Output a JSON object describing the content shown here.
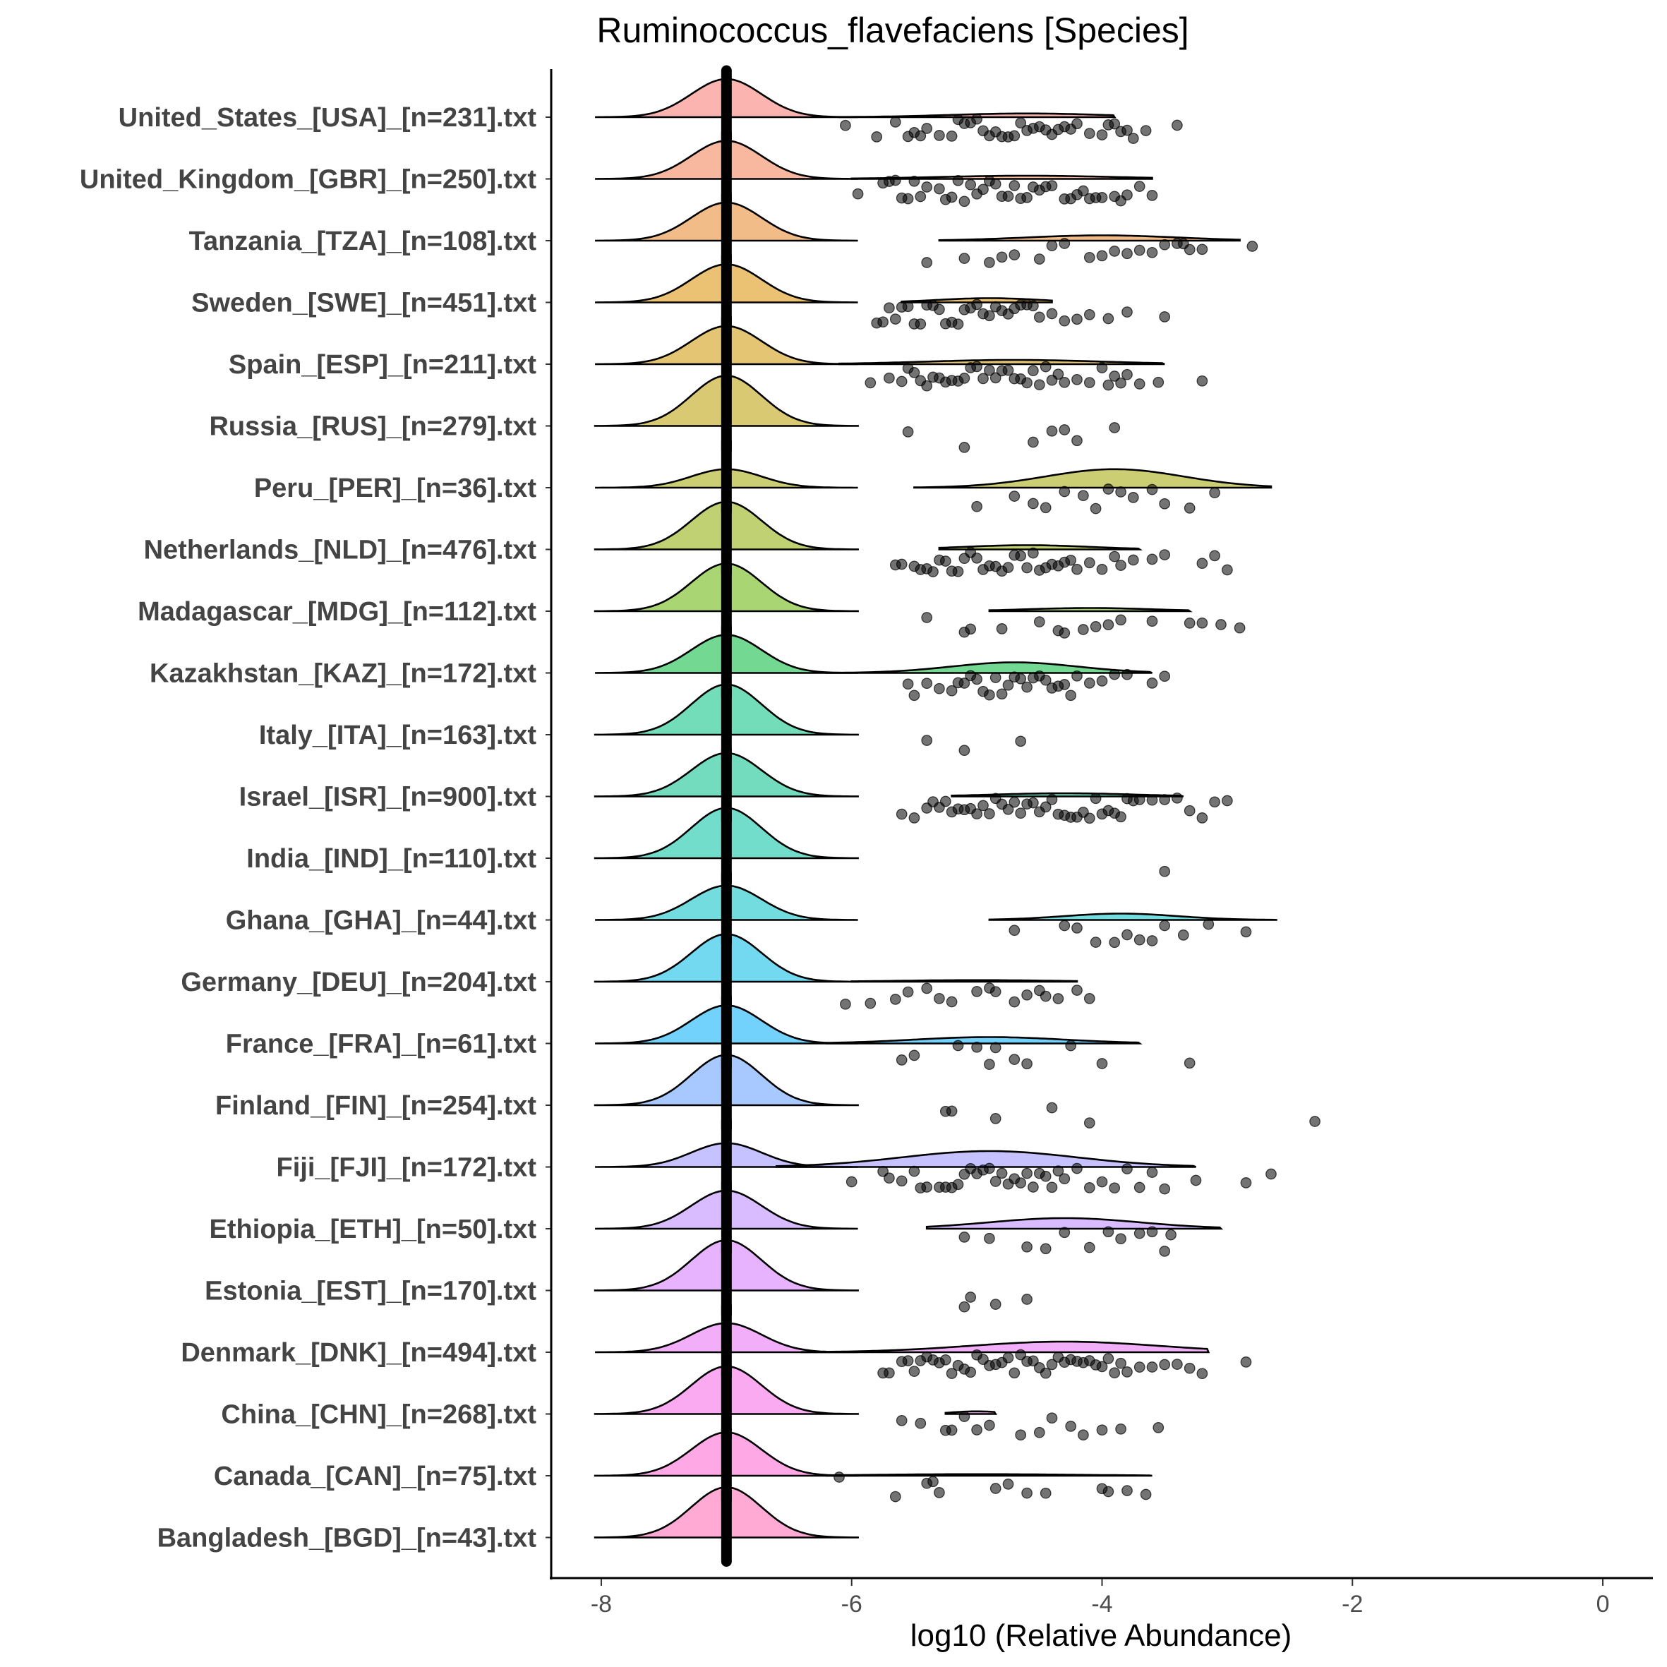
{
  "chart_data": {
    "type": "ridgeline",
    "title": "Ruminococcus_flavefaciens [Species]",
    "xlabel": "log10 (Relative Abundance)",
    "ylabel": "",
    "xlim": [
      -8.4,
      0.4
    ],
    "xticks": [
      -8,
      -6,
      -4,
      -2,
      0
    ],
    "xtick_labels": [
      "-8",
      "-6",
      "-4",
      "-2",
      "0"
    ],
    "zero_value": -7,
    "categories": [
      {
        "name": "United_States_[USA]_[n=231].txt",
        "color": "#F8766D",
        "zero_peak": 0.72,
        "second": {
          "mean": -4.6,
          "sd": 0.6,
          "peak": 0.07,
          "from": -6.1,
          "to": -3.9
        },
        "points": [
          -6.05,
          -5.8,
          -5.65,
          -5.55,
          -5.5,
          -5.45,
          -5.4,
          -5.3,
          -5.2,
          -5.15,
          -5.1,
          -5.05,
          -5.0,
          -4.95,
          -4.9,
          -4.85,
          -4.8,
          -4.75,
          -4.7,
          -4.65,
          -4.6,
          -4.55,
          -4.5,
          -4.45,
          -4.4,
          -4.35,
          -4.3,
          -4.25,
          -4.2,
          -4.1,
          -4.0,
          -3.95,
          -3.9,
          -3.85,
          -3.8,
          -3.75,
          -3.65,
          -3.4
        ]
      },
      {
        "name": "United_Kingdom_[GBR]_[n=250].txt",
        "color": "#F27D52",
        "zero_peak": 0.72,
        "second": {
          "mean": -4.6,
          "sd": 0.7,
          "peak": 0.06,
          "from": -6.0,
          "to": -3.6
        },
        "points": [
          -5.95,
          -5.75,
          -5.7,
          -5.65,
          -5.6,
          -5.55,
          -5.5,
          -5.45,
          -5.4,
          -5.3,
          -5.25,
          -5.2,
          -5.15,
          -5.1,
          -5.05,
          -5.0,
          -4.95,
          -4.9,
          -4.85,
          -4.8,
          -4.75,
          -4.7,
          -4.65,
          -4.6,
          -4.55,
          -4.5,
          -4.45,
          -4.4,
          -4.3,
          -4.25,
          -4.2,
          -4.15,
          -4.1,
          -4.05,
          -4.0,
          -3.9,
          -3.85,
          -3.8,
          -3.7,
          -3.6
        ]
      },
      {
        "name": "Tanzania_[TZA]_[n=108].txt",
        "color": "#E88526",
        "zero_peak": 0.72,
        "second": {
          "mean": -4.0,
          "sd": 0.6,
          "peak": 0.1,
          "from": -5.3,
          "to": -2.9
        },
        "points": [
          -5.4,
          -5.1,
          -4.9,
          -4.8,
          -4.7,
          -4.5,
          -4.4,
          -4.3,
          -4.1,
          -4.0,
          -3.9,
          -3.8,
          -3.7,
          -3.6,
          -3.5,
          -3.4,
          -3.35,
          -3.3,
          -3.2,
          -2.8
        ]
      },
      {
        "name": "Sweden_[SWE]_[n=451].txt",
        "color": "#DB8E00",
        "zero_peak": 0.72,
        "second": {
          "mean": -4.9,
          "sd": 0.4,
          "peak": 0.08,
          "from": -5.6,
          "to": -4.4
        },
        "points": [
          -5.8,
          -5.75,
          -5.7,
          -5.65,
          -5.6,
          -5.55,
          -5.5,
          -5.45,
          -5.4,
          -5.35,
          -5.3,
          -5.25,
          -5.2,
          -5.15,
          -5.1,
          -5.05,
          -5.0,
          -4.95,
          -4.9,
          -4.85,
          -4.8,
          -4.75,
          -4.7,
          -4.65,
          -4.6,
          -4.55,
          -4.5,
          -4.4,
          -4.3,
          -4.2,
          -4.1,
          -3.95,
          -3.8,
          -3.5
        ]
      },
      {
        "name": "Spain_[ESP]_[n=211].txt",
        "color": "#CD9600",
        "zero_peak": 0.72,
        "second": {
          "mean": -4.7,
          "sd": 0.7,
          "peak": 0.08,
          "from": -6.1,
          "to": -3.5
        },
        "points": [
          -5.85,
          -5.7,
          -5.6,
          -5.55,
          -5.5,
          -5.45,
          -5.4,
          -5.35,
          -5.3,
          -5.25,
          -5.2,
          -5.15,
          -5.1,
          -5.05,
          -5.0,
          -4.95,
          -4.9,
          -4.85,
          -4.8,
          -4.75,
          -4.7,
          -4.65,
          -4.6,
          -4.55,
          -4.5,
          -4.45,
          -4.4,
          -4.35,
          -4.3,
          -4.2,
          -4.1,
          -4.0,
          -3.95,
          -3.9,
          -3.85,
          -3.8,
          -3.7,
          -3.55,
          -3.2
        ]
      },
      {
        "name": "Russia_[RUS]_[n=279].txt",
        "color": "#BB9D00",
        "zero_peak": 0.95,
        "second": null,
        "points": [
          -5.55,
          -5.1,
          -4.55,
          -4.4,
          -4.3,
          -4.2,
          -3.9
        ]
      },
      {
        "name": "Peru_[PER]_[n=36].txt",
        "color": "#A3A500",
        "zero_peak": 0.35,
        "second": {
          "mean": -3.9,
          "sd": 0.55,
          "peak": 0.35,
          "from": -5.5,
          "to": -2.65
        },
        "points": [
          -5.0,
          -4.7,
          -4.55,
          -4.45,
          -4.3,
          -4.15,
          -4.05,
          -3.95,
          -3.85,
          -3.75,
          -3.6,
          -3.5,
          -3.3,
          -3.1
        ]
      },
      {
        "name": "Netherlands_[NLD]_[n=476].txt",
        "color": "#8AAB00",
        "zero_peak": 0.9,
        "second": {
          "mean": -4.6,
          "sd": 0.5,
          "peak": 0.08,
          "from": -5.3,
          "to": -3.7
        },
        "points": [
          -5.65,
          -5.6,
          -5.5,
          -5.45,
          -5.4,
          -5.35,
          -5.3,
          -5.25,
          -5.2,
          -5.15,
          -5.1,
          -5.05,
          -5.0,
          -4.95,
          -4.9,
          -4.85,
          -4.8,
          -4.75,
          -4.7,
          -4.65,
          -4.6,
          -4.55,
          -4.5,
          -4.45,
          -4.4,
          -4.35,
          -4.3,
          -4.25,
          -4.2,
          -4.1,
          -4.0,
          -3.9,
          -3.85,
          -3.75,
          -3.6,
          -3.5,
          -3.2,
          -3.1,
          -3.0
        ]
      },
      {
        "name": "Madagascar_[MDG]_[n=112].txt",
        "color": "#64B200",
        "zero_peak": 0.9,
        "second": {
          "mean": -4.1,
          "sd": 0.5,
          "peak": 0.06,
          "from": -4.9,
          "to": -3.3
        },
        "points": [
          -5.4,
          -5.1,
          -5.05,
          -4.8,
          -4.5,
          -4.35,
          -4.3,
          -4.15,
          -4.05,
          -3.95,
          -3.85,
          -3.6,
          -3.3,
          -3.2,
          -3.05,
          -2.9
        ]
      },
      {
        "name": "Kazakhstan_[KAZ]_[n=172].txt",
        "color": "#00BA38",
        "zero_peak": 0.72,
        "second": {
          "mean": -4.7,
          "sd": 0.5,
          "peak": 0.2,
          "from": -6.2,
          "to": -3.6
        },
        "points": [
          -5.55,
          -5.5,
          -5.4,
          -5.3,
          -5.2,
          -5.15,
          -5.1,
          -5.05,
          -5.0,
          -4.95,
          -4.9,
          -4.85,
          -4.8,
          -4.75,
          -4.7,
          -4.65,
          -4.6,
          -4.55,
          -4.5,
          -4.45,
          -4.4,
          -4.35,
          -4.3,
          -4.25,
          -4.2,
          -4.1,
          -4.0,
          -3.9,
          -3.8,
          -3.6,
          -3.5
        ]
      },
      {
        "name": "Italy_[ITA]_[n=163].txt",
        "color": "#00BF7D",
        "zero_peak": 0.95,
        "second": null,
        "points": [
          -5.4,
          -5.1,
          -4.65
        ]
      },
      {
        "name": "Israel_[ISR]_[n=900].txt",
        "color": "#00C08B",
        "zero_peak": 0.82,
        "second": {
          "mean": -4.3,
          "sd": 0.55,
          "peak": 0.06,
          "from": -5.2,
          "to": -3.35
        },
        "points": [
          -5.6,
          -5.5,
          -5.4,
          -5.35,
          -5.3,
          -5.25,
          -5.2,
          -5.15,
          -5.1,
          -5.05,
          -5.0,
          -4.95,
          -4.9,
          -4.85,
          -4.8,
          -4.75,
          -4.7,
          -4.65,
          -4.6,
          -4.55,
          -4.5,
          -4.45,
          -4.4,
          -4.35,
          -4.3,
          -4.25,
          -4.2,
          -4.15,
          -4.1,
          -4.05,
          -4.0,
          -3.95,
          -3.9,
          -3.85,
          -3.8,
          -3.75,
          -3.7,
          -3.6,
          -3.5,
          -3.4,
          -3.3,
          -3.2,
          -3.1,
          -3.0
        ]
      },
      {
        "name": "India_[IND]_[n=110].txt",
        "color": "#00C1A3",
        "zero_peak": 0.95,
        "second": null,
        "points": [
          -3.5
        ]
      },
      {
        "name": "Ghana_[GHA]_[n=44].txt",
        "color": "#00BFC4",
        "zero_peak": 0.65,
        "second": {
          "mean": -3.85,
          "sd": 0.45,
          "peak": 0.12,
          "from": -4.9,
          "to": -2.6
        },
        "points": [
          -4.7,
          -4.3,
          -4.2,
          -4.05,
          -3.9,
          -3.8,
          -3.7,
          -3.6,
          -3.5,
          -3.35,
          -3.15,
          -2.85
        ]
      },
      {
        "name": "Germany_[DEU]_[n=204].txt",
        "color": "#00B9E3",
        "zero_peak": 0.9,
        "second": {
          "mean": -5.0,
          "sd": 0.6,
          "peak": 0.03,
          "from": -6.0,
          "to": -4.2
        },
        "points": [
          -6.05,
          -5.85,
          -5.65,
          -5.55,
          -5.4,
          -5.3,
          -5.2,
          -5.0,
          -4.9,
          -4.85,
          -4.7,
          -4.6,
          -4.5,
          -4.45,
          -4.35,
          -4.2,
          -4.1
        ]
      },
      {
        "name": "France_[FRA]_[n=61].txt",
        "color": "#00ADFA",
        "zero_peak": 0.72,
        "second": {
          "mean": -4.9,
          "sd": 0.6,
          "peak": 0.12,
          "from": -6.2,
          "to": -3.7
        },
        "points": [
          -5.6,
          -5.5,
          -5.15,
          -5.0,
          -4.9,
          -4.85,
          -4.7,
          -4.6,
          -4.25,
          -4.0,
          -3.3
        ]
      },
      {
        "name": "Finland_[FIN]_[n=254].txt",
        "color": "#619CFF",
        "zero_peak": 0.95,
        "second": null,
        "points": [
          -5.25,
          -5.2,
          -4.85,
          -4.4,
          -4.1,
          -2.3
        ]
      },
      {
        "name": "Fiji_[FJI]_[n=172].txt",
        "color": "#9590FF",
        "zero_peak": 0.45,
        "second": {
          "mean": -4.9,
          "sd": 0.7,
          "peak": 0.3,
          "from": -6.6,
          "to": -3.25
        },
        "points": [
          -6.0,
          -5.75,
          -5.7,
          -5.6,
          -5.5,
          -5.45,
          -5.4,
          -5.3,
          -5.25,
          -5.2,
          -5.15,
          -5.1,
          -5.05,
          -5.0,
          -4.95,
          -4.9,
          -4.85,
          -4.8,
          -4.75,
          -4.7,
          -4.65,
          -4.6,
          -4.55,
          -4.5,
          -4.45,
          -4.4,
          -4.35,
          -4.3,
          -4.2,
          -4.1,
          -4.0,
          -3.9,
          -3.8,
          -3.7,
          -3.6,
          -3.5,
          -3.25,
          -2.85,
          -2.65
        ]
      },
      {
        "name": "Ethiopia_[ETH]_[n=50].txt",
        "color": "#B983FF",
        "zero_peak": 0.72,
        "second": {
          "mean": -4.3,
          "sd": 0.6,
          "peak": 0.2,
          "from": -5.4,
          "to": -3.05
        },
        "points": [
          -5.1,
          -4.9,
          -4.6,
          -4.45,
          -4.3,
          -4.1,
          -3.95,
          -3.85,
          -3.7,
          -3.6,
          -3.5,
          -3.45
        ]
      },
      {
        "name": "Estonia_[EST]_[n=170].txt",
        "color": "#D575FE",
        "zero_peak": 0.95,
        "second": null,
        "points": [
          -5.1,
          -5.05,
          -4.85,
          -4.6
        ]
      },
      {
        "name": "Denmark_[DNK]_[n=494].txt",
        "color": "#E76BF3",
        "zero_peak": 0.55,
        "second": {
          "mean": -4.3,
          "sd": 0.75,
          "peak": 0.2,
          "from": -6.4,
          "to": -3.15
        },
        "points": [
          -5.75,
          -5.7,
          -5.6,
          -5.55,
          -5.5,
          -5.45,
          -5.4,
          -5.35,
          -5.3,
          -5.25,
          -5.2,
          -5.15,
          -5.1,
          -5.05,
          -5.0,
          -4.95,
          -4.9,
          -4.85,
          -4.8,
          -4.75,
          -4.7,
          -4.65,
          -4.6,
          -4.55,
          -4.5,
          -4.45,
          -4.4,
          -4.35,
          -4.3,
          -4.25,
          -4.2,
          -4.15,
          -4.1,
          -4.05,
          -4.0,
          -3.95,
          -3.9,
          -3.85,
          -3.8,
          -3.7,
          -3.6,
          -3.5,
          -3.4,
          -3.3,
          -3.2,
          -2.85
        ]
      },
      {
        "name": "China_[CHN]_[n=268].txt",
        "color": "#F564E3",
        "zero_peak": 0.9,
        "second": {
          "mean": -5.0,
          "sd": 0.2,
          "peak": 0.05,
          "from": -5.25,
          "to": -4.85
        },
        "points": [
          -5.6,
          -5.45,
          -5.25,
          -5.2,
          -5.1,
          -5.0,
          -4.9,
          -4.65,
          -4.5,
          -4.4,
          -4.25,
          -4.15,
          -4.0,
          -3.85,
          -3.55
        ]
      },
      {
        "name": "Canada_[CAN]_[n=75].txt",
        "color": "#FD61D1",
        "zero_peak": 0.82,
        "second": {
          "mean": -5.0,
          "sd": 0.8,
          "peak": 0.03,
          "from": -6.2,
          "to": -3.6
        },
        "points": [
          -6.1,
          -5.65,
          -5.4,
          -5.35,
          -5.3,
          -4.85,
          -4.75,
          -4.6,
          -4.45,
          -4.0,
          -3.95,
          -3.8,
          -3.65
        ]
      },
      {
        "name": "Bangladesh_[BGD]_[n=43].txt",
        "color": "#FF64B0",
        "zero_peak": 0.95,
        "second": null,
        "points": []
      }
    ]
  }
}
